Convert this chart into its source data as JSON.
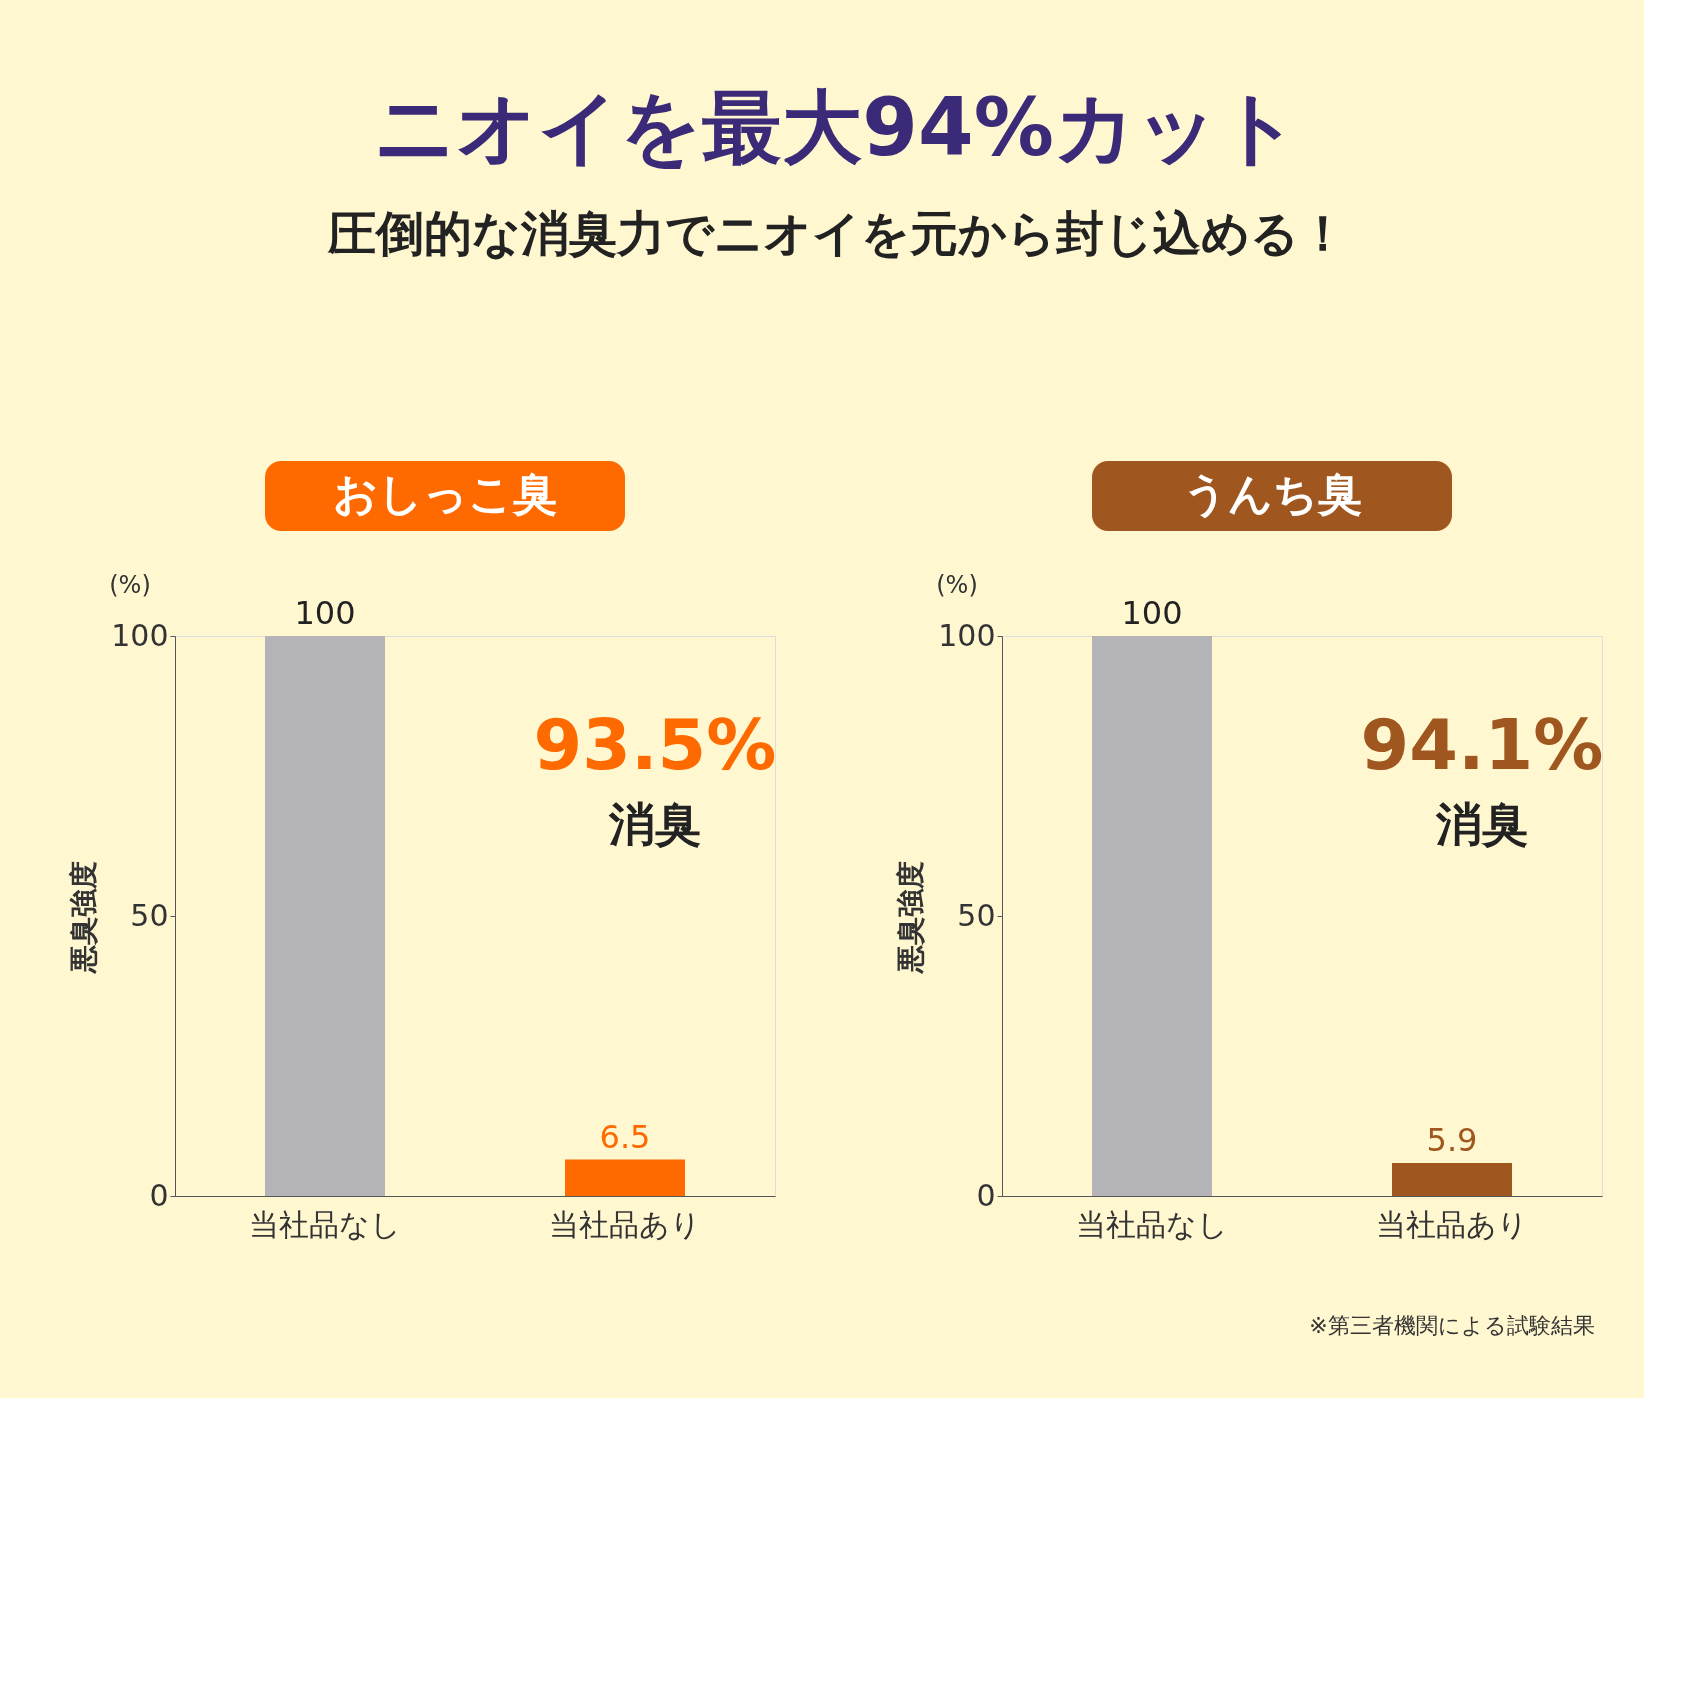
{
  "chart_data": [
    {
      "type": "bar",
      "title": "ニオイを最大94%カット",
      "subtitle": "圧倒的な消臭力でニオイを元から封じ込める！",
      "categories": [
        "当社品なし",
        "当社品あり"
      ],
      "values": [
        100,
        6.5
      ],
      "colors": [
        "#b4b4b8",
        "#ff6a00"
      ],
      "ylim": [
        0,
        100
      ],
      "yticks": [
        0,
        50,
        100
      ],
      "ylabel": "悪臭強度",
      "data_labels": true,
      "grid": false,
      "annotations": [
        "おしっこ臭",
        "(%)",
        "93.5%",
        "消臭"
      ]
    },
    {
      "type": "bar",
      "categories": [
        "当社品なし",
        "当社品あり"
      ],
      "values": [
        100,
        5.9
      ],
      "colors": [
        "#b4b4b8",
        "#a0561f"
      ],
      "ylim": [
        0,
        100
      ],
      "yticks": [
        0,
        50,
        100
      ],
      "ylabel": "悪臭強度",
      "data_labels": true,
      "grid": false,
      "annotations": [
        "うんち臭",
        "(%)",
        "94.1%",
        "消臭",
        "※第三者機関による試験結果"
      ]
    }
  ]
}
